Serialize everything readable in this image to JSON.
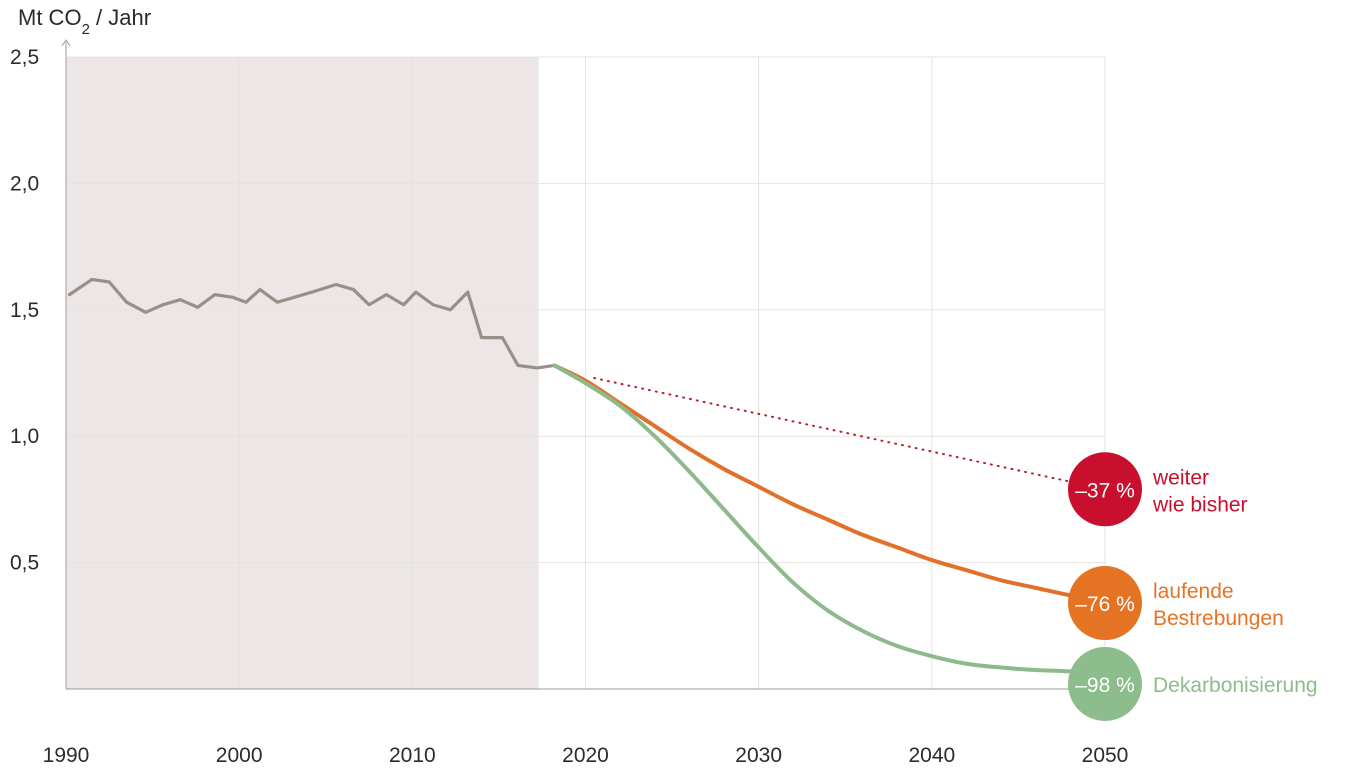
{
  "chart_data": {
    "type": "line",
    "y_unit_title": {
      "prefix": "Mt CO",
      "subscript": "2",
      "suffix": " / Jahr"
    },
    "ylim": [
      0.0,
      2.5
    ],
    "xlim": [
      1990,
      2050
    ],
    "grid": true,
    "historical_shading": [
      1990,
      2017.3
    ],
    "y_ticks": [
      {
        "value": 2.5,
        "label": "2,5"
      },
      {
        "value": 2.0,
        "label": "2,0"
      },
      {
        "value": 1.5,
        "label": "1,5"
      },
      {
        "value": 1.0,
        "label": "1,0"
      },
      {
        "value": 0.5,
        "label": "0,5"
      }
    ],
    "x_ticks": [
      {
        "value": 1990,
        "label": "1990"
      },
      {
        "value": 2000,
        "label": "2000"
      },
      {
        "value": 2010,
        "label": "2010"
      },
      {
        "value": 2020,
        "label": "2020"
      },
      {
        "value": 2030,
        "label": "2030"
      },
      {
        "value": 2040,
        "label": "2040"
      },
      {
        "value": 2050,
        "label": "2050"
      }
    ],
    "series": [
      {
        "name": "historical",
        "color": "#9a8f88",
        "style": "solid",
        "points": [
          [
            1990.2,
            1.56
          ],
          [
            1991.5,
            1.62
          ],
          [
            1992.5,
            1.61
          ],
          [
            1993.5,
            1.53
          ],
          [
            1994.6,
            1.49
          ],
          [
            1995.6,
            1.52
          ],
          [
            1996.6,
            1.54
          ],
          [
            1997.6,
            1.51
          ],
          [
            1998.6,
            1.56
          ],
          [
            1999.6,
            1.55
          ],
          [
            2000.4,
            1.53
          ],
          [
            2001.2,
            1.58
          ],
          [
            2002.2,
            1.53
          ],
          [
            2003.2,
            1.55
          ],
          [
            2004.2,
            1.57
          ],
          [
            2005.6,
            1.6
          ],
          [
            2006.6,
            1.58
          ],
          [
            2007.5,
            1.52
          ],
          [
            2008.5,
            1.56
          ],
          [
            2009.5,
            1.52
          ],
          [
            2010.2,
            1.57
          ],
          [
            2011.2,
            1.52
          ],
          [
            2012.2,
            1.5
          ],
          [
            2013.2,
            1.57
          ],
          [
            2014.0,
            1.39
          ],
          [
            2015.2,
            1.39
          ],
          [
            2016.1,
            1.28
          ],
          [
            2017.2,
            1.27
          ],
          [
            2018.2,
            1.28
          ]
        ]
      },
      {
        "name": "weiter wie bisher",
        "color": "#b5202e",
        "style": "dotted",
        "points": [
          [
            2020.5,
            1.23
          ],
          [
            2050.0,
            0.79
          ]
        ]
      },
      {
        "name": "laufende Bestrebungen",
        "color": "#e0702a",
        "style": "solid",
        "points": [
          [
            2018.2,
            1.28
          ],
          [
            2020.0,
            1.22
          ],
          [
            2022.0,
            1.13
          ],
          [
            2024.0,
            1.04
          ],
          [
            2026.0,
            0.95
          ],
          [
            2028.0,
            0.87
          ],
          [
            2030.0,
            0.8
          ],
          [
            2032.0,
            0.73
          ],
          [
            2034.0,
            0.67
          ],
          [
            2036.0,
            0.61
          ],
          [
            2038.0,
            0.56
          ],
          [
            2040.0,
            0.51
          ],
          [
            2042.0,
            0.47
          ],
          [
            2044.0,
            0.43
          ],
          [
            2046.0,
            0.4
          ],
          [
            2048.0,
            0.37
          ]
        ]
      },
      {
        "name": "Dekarbonisierung",
        "color": "#8dba8b",
        "style": "solid",
        "points": [
          [
            2018.2,
            1.28
          ],
          [
            2020.0,
            1.21
          ],
          [
            2022.0,
            1.12
          ],
          [
            2024.0,
            1.0
          ],
          [
            2026.0,
            0.86
          ],
          [
            2028.0,
            0.71
          ],
          [
            2030.0,
            0.56
          ],
          [
            2032.0,
            0.42
          ],
          [
            2034.0,
            0.31
          ],
          [
            2036.0,
            0.23
          ],
          [
            2038.0,
            0.17
          ],
          [
            2040.0,
            0.13
          ],
          [
            2042.0,
            0.1
          ],
          [
            2044.0,
            0.085
          ],
          [
            2046.0,
            0.075
          ],
          [
            2048.0,
            0.07
          ]
        ]
      }
    ],
    "badges": [
      {
        "name": "badge-weiter-wie-bisher",
        "year": 2050,
        "value": 0.79,
        "percent": "–37 %",
        "label_lines": [
          "weiter",
          "wie bisher"
        ],
        "color": "#c8102e",
        "label_color": "#c8102e"
      },
      {
        "name": "badge-laufende-bestrebungen",
        "year": 2050,
        "value": 0.34,
        "percent": "–76 %",
        "label_lines": [
          "laufende",
          "Bestrebungen"
        ],
        "color": "#e57324",
        "label_color": "#e57324"
      },
      {
        "name": "badge-dekarbonisierung",
        "year": 2050,
        "value": 0.02,
        "percent": "–98 %",
        "label_lines": [
          "Dekarbonisierung"
        ],
        "color": "#8dbc8d",
        "label_color": "#8dbc8d"
      }
    ]
  }
}
